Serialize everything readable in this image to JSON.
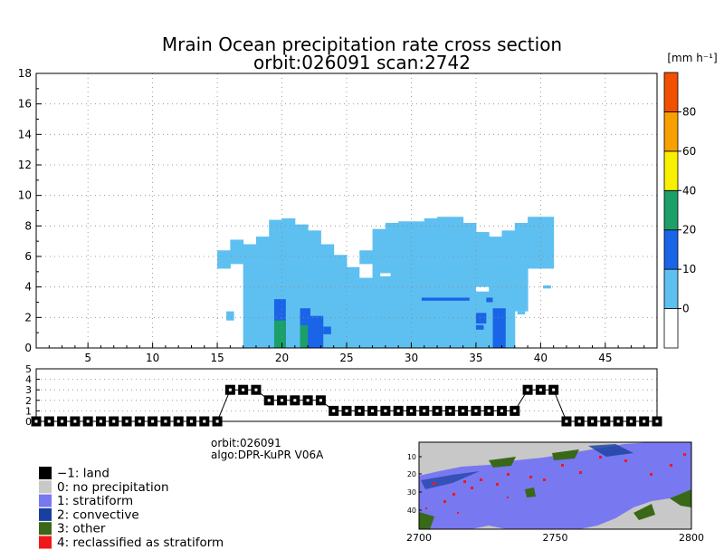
{
  "title": {
    "line1": "Mrain Ocean precipitation rate cross section",
    "line2": "orbit:026091    scan:2742"
  },
  "colorbar": {
    "unit": "[mm h⁻¹]",
    "ticks": [
      "0",
      "10",
      "20",
      "40",
      "60",
      "80"
    ],
    "levels": [
      {
        "from": -10,
        "to": 0,
        "color": "#ffffff"
      },
      {
        "from": 0,
        "to": 10,
        "color": "#5ec0f0"
      },
      {
        "from": 10,
        "to": 20,
        "color": "#1a64e8"
      },
      {
        "from": 20,
        "to": 40,
        "color": "#1aa068"
      },
      {
        "from": 40,
        "to": 60,
        "color": "#f8f000"
      },
      {
        "from": 60,
        "to": 80,
        "color": "#f8a000"
      },
      {
        "from": 80,
        "to": 100,
        "color": "#f05000"
      }
    ]
  },
  "info": {
    "orbit": "orbit:026091",
    "algo": "algo:DPR-KuPR V06A"
  },
  "legend": [
    {
      "label": "−1: land",
      "color": "#000000"
    },
    {
      "label": "0: no precipitation",
      "color": "#c8c8c8"
    },
    {
      "label": "1: stratiform",
      "color": "#7878f0"
    },
    {
      "label": "2: convective",
      "color": "#1840a0"
    },
    {
      "label": "3: other",
      "color": "#386818"
    },
    {
      "label": "4: reclassified as stratiform",
      "color": "#f01818"
    }
  ],
  "chart_data": [
    {
      "type": "heatmap",
      "title": "Mrain Ocean precipitation rate cross section",
      "subtitle": "orbit:026091    scan:2742",
      "xlim": [
        1,
        49
      ],
      "ylim": [
        0,
        18
      ],
      "xticks": [
        5,
        10,
        15,
        20,
        25,
        30,
        35,
        40,
        45
      ],
      "yticks": [
        0,
        2,
        4,
        6,
        8,
        10,
        12,
        14,
        16,
        18
      ],
      "grid": true,
      "light_columns": [
        {
          "x": 15.5,
          "top": 6.4,
          "bottom": 5.2
        },
        {
          "x": 16.5,
          "top": 7.1,
          "bottom": 5.5
        },
        {
          "x": 17.5,
          "top": 6.8,
          "bottom": 0
        },
        {
          "x": 18.5,
          "top": 7.3,
          "bottom": 0
        },
        {
          "x": 19.5,
          "top": 8.4,
          "bottom": 0
        },
        {
          "x": 20.5,
          "top": 8.5,
          "bottom": 0
        },
        {
          "x": 21.5,
          "top": 8.1,
          "bottom": 0
        },
        {
          "x": 22.5,
          "top": 7.7,
          "bottom": 0
        },
        {
          "x": 23.5,
          "top": 6.8,
          "bottom": 0
        },
        {
          "x": 24.5,
          "top": 6.1,
          "bottom": 0
        },
        {
          "x": 25.5,
          "top": 5.3,
          "bottom": 0
        },
        {
          "x": 26.5,
          "top": 6.4,
          "bottom": 0
        },
        {
          "x": 27.5,
          "top": 7.8,
          "bottom": 0
        },
        {
          "x": 28.5,
          "top": 8.2,
          "bottom": 0
        },
        {
          "x": 29.5,
          "top": 8.3,
          "bottom": 0
        },
        {
          "x": 30.5,
          "top": 8.3,
          "bottom": 0
        },
        {
          "x": 31.5,
          "top": 8.5,
          "bottom": 0
        },
        {
          "x": 32.5,
          "top": 8.6,
          "bottom": 0
        },
        {
          "x": 33.5,
          "top": 8.6,
          "bottom": 0
        },
        {
          "x": 34.5,
          "top": 8.2,
          "bottom": 0
        },
        {
          "x": 35.5,
          "top": 7.6,
          "bottom": 0
        },
        {
          "x": 36.5,
          "top": 7.3,
          "bottom": 0
        },
        {
          "x": 37.5,
          "top": 7.7,
          "bottom": 0
        },
        {
          "x": 38.5,
          "top": 8.2,
          "bottom": 2.4
        },
        {
          "x": 39.5,
          "top": 8.6,
          "bottom": 5.2
        },
        {
          "x": 40.5,
          "top": 8.6,
          "bottom": 5.2
        }
      ],
      "light_extra": [
        {
          "x0": 15.7,
          "x1": 16.3,
          "y0": 1.8,
          "y1": 2.4
        },
        {
          "x0": 38.2,
          "x1": 38.8,
          "y0": 2.2,
          "y1": 2.4
        },
        {
          "x0": 40.2,
          "x1": 40.8,
          "y0": 3.9,
          "y1": 4.1
        }
      ],
      "white_gaps": [
        {
          "x0": 26.0,
          "x1": 27.0,
          "y0": 4.6,
          "y1": 5.5
        },
        {
          "x0": 27.6,
          "x1": 28.4,
          "y0": 4.7,
          "y1": 4.9
        },
        {
          "x0": 35.0,
          "x1": 36.0,
          "y0": 3.7,
          "y1": 4.0
        }
      ],
      "blue_cells": [
        {
          "x0": 19.4,
          "x1": 20.3,
          "y0": 0,
          "y1": 3.2
        },
        {
          "x0": 21.4,
          "x1": 22.2,
          "y0": 0,
          "y1": 2.6
        },
        {
          "x0": 22.2,
          "x1": 23.2,
          "y0": 0,
          "y1": 2.1
        },
        {
          "x0": 23.2,
          "x1": 23.8,
          "y0": 0.9,
          "y1": 1.4
        },
        {
          "x0": 36.3,
          "x1": 37.3,
          "y0": 0,
          "y1": 2.6
        },
        {
          "x0": 30.8,
          "x1": 34.5,
          "y0": 3.1,
          "y1": 3.3
        },
        {
          "x0": 35.0,
          "x1": 35.8,
          "y0": 1.6,
          "y1": 2.3
        },
        {
          "x0": 35.0,
          "x1": 35.6,
          "y0": 1.2,
          "y1": 1.5
        },
        {
          "x0": 35.8,
          "x1": 36.3,
          "y0": 3.0,
          "y1": 3.3
        }
      ],
      "green_cells": [
        {
          "x0": 19.4,
          "x1": 20.3,
          "y0": 0,
          "y1": 1.8
        },
        {
          "x0": 21.4,
          "x1": 22.0,
          "y0": 0,
          "y1": 1.5
        }
      ]
    },
    {
      "type": "line",
      "name": "flag panel",
      "xlim": [
        1,
        49
      ],
      "ylim": [
        0,
        5
      ],
      "yticks": [
        0,
        1,
        2,
        3,
        4,
        5
      ],
      "x": [
        1,
        2,
        3,
        4,
        5,
        6,
        7,
        8,
        9,
        10,
        11,
        12,
        13,
        14,
        15,
        16,
        17,
        18,
        19,
        20,
        21,
        22,
        23,
        24,
        25,
        26,
        27,
        28,
        29,
        30,
        31,
        32,
        33,
        34,
        35,
        36,
        37,
        38,
        39,
        40,
        41,
        42,
        43,
        44,
        45,
        46,
        47,
        48,
        49
      ],
      "values": [
        0,
        0,
        0,
        0,
        0,
        0,
        0,
        0,
        0,
        0,
        0,
        0,
        0,
        0,
        0,
        3,
        3,
        3,
        2,
        2,
        2,
        2,
        2,
        1,
        1,
        1,
        1,
        1,
        1,
        1,
        1,
        1,
        1,
        1,
        1,
        1,
        1,
        1,
        3,
        3,
        3,
        0,
        0,
        0,
        0,
        0,
        0,
        0,
        0
      ]
    },
    {
      "type": "heatmap",
      "name": "swath precipitation type map",
      "xlim": [
        2700,
        2800
      ],
      "xticks": [
        2700,
        2750,
        2800
      ],
      "yticks": [
        10,
        20,
        30,
        40
      ]
    }
  ]
}
